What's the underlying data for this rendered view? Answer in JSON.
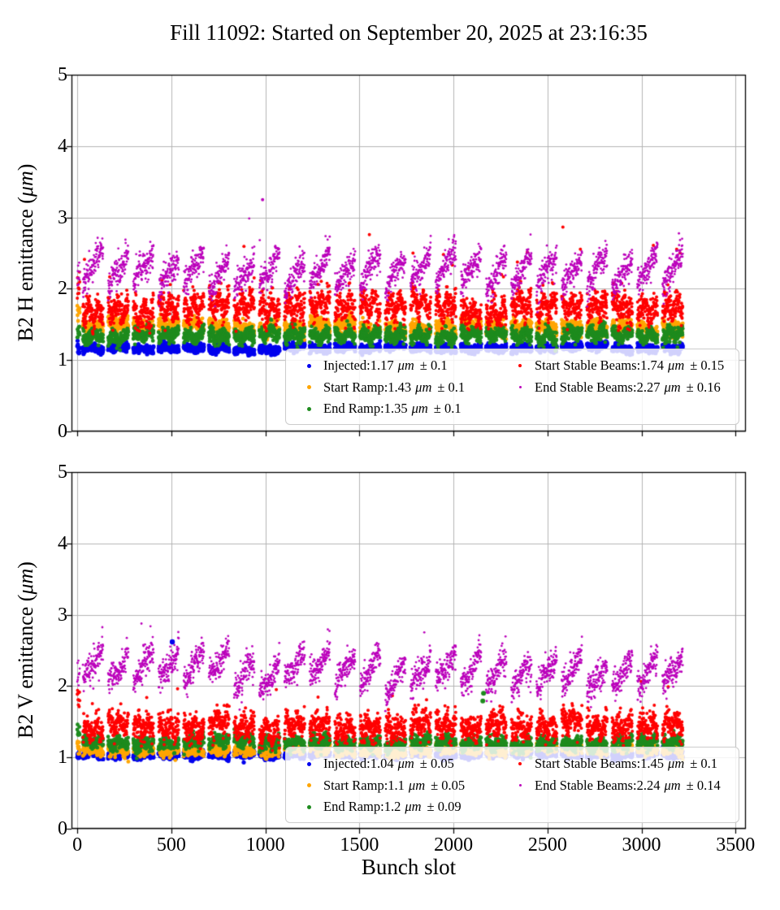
{
  "title": "Fill 11092: Started on September 20, 2025 at 23:16:35",
  "x_axis": {
    "label": "Bunch slot",
    "ticks": [
      0,
      500,
      1000,
      1500,
      2000,
      2500,
      3000,
      3500
    ],
    "ticklabels": [
      "0",
      "500",
      "1000",
      "1500",
      "2000",
      "2500",
      "3000",
      "3500"
    ]
  },
  "grid_color": "#b4b4b4",
  "chart_data": [
    {
      "type": "scatter",
      "beam": "B2 H",
      "ylabel_prefix": "B2 H emittance (",
      "ylabel_unit": "μm",
      "ylabel_suffix": ")",
      "xlabel": "Bunch slot",
      "xlim": [
        -31,
        3555
      ],
      "ylim": [
        0,
        5
      ],
      "yticks": [
        0,
        1,
        2,
        3,
        4,
        5
      ],
      "yticklabels": [
        "0",
        "1",
        "2",
        "3",
        "4",
        "5"
      ],
      "grid": true,
      "legend_position": "lower right",
      "legend_columns": 2,
      "seed": 42,
      "bunch_structure": {
        "probe_count": 10,
        "probe_span": 14,
        "train_start": 30,
        "train_count": 24,
        "train_length": 108,
        "train_gap": 26
      },
      "series": [
        {
          "name": "Injected",
          "mean": 1.17,
          "std": 0.1,
          "color": "#0000ee",
          "size": 5.2,
          "legend_prefix": "Injected:1.17",
          "legend_unit": "μm",
          "legend_suffix": "± 0.1",
          "gen": {
            "base": 1.17,
            "noise": 0.028,
            "train_jitter": 0.012,
            "slope": 0,
            "wave": 0.02,
            "wave_freq": 1,
            "probe_offset": 0.0,
            "probe_noise": 0.05,
            "outlier_rate": 0,
            "outlier_min": 0,
            "outlier_max": 0
          }
        },
        {
          "name": "Start Ramp",
          "mean": 1.43,
          "std": 0.1,
          "color": "#ffa500",
          "size": 4.8,
          "legend_prefix": "Start Ramp:1.43",
          "legend_unit": "μm",
          "legend_suffix": "± 0.1",
          "gen": {
            "base": 1.47,
            "noise": 0.05,
            "train_jitter": 0.025,
            "slope": -0.05,
            "wave": 0.03,
            "wave_freq": 1,
            "probe_offset": 0.22,
            "probe_noise": 0.06,
            "outlier_rate": 0,
            "outlier_min": 0,
            "outlier_max": 0
          }
        },
        {
          "name": "End Ramp",
          "mean": 1.35,
          "std": 0.1,
          "color": "#1e8b1e",
          "size": 4.8,
          "legend_prefix": "End Ramp:1.35",
          "legend_unit": "μm",
          "legend_suffix": "± 0.1",
          "gen": {
            "base": 1.35,
            "noise": 0.05,
            "train_jitter": 0.02,
            "slope": 0.03,
            "wave": 0.05,
            "wave_freq": 1.5,
            "probe_offset": 0.05,
            "probe_noise": 0.06,
            "outlier_rate": 0,
            "outlier_min": 0,
            "outlier_max": 0
          }
        },
        {
          "name": "Start Stable Beams",
          "mean": 1.74,
          "std": 0.15,
          "color": "#ff0000",
          "size": 4.0,
          "legend_prefix": "Start Stable Beams:1.74",
          "legend_unit": "μm",
          "legend_suffix": "± 0.15",
          "gen": {
            "base": 1.72,
            "noise": 0.1,
            "train_jitter": 0.04,
            "slope": 0.02,
            "wave": 0.09,
            "wave_freq": 2,
            "probe_offset": 0.35,
            "probe_noise": 0.15,
            "outlier_rate": 0.01,
            "outlier_min": 0.35,
            "outlier_max": 0.95
          }
        },
        {
          "name": "End Stable Beams",
          "mean": 2.27,
          "std": 0.16,
          "color": "#bb00bb",
          "size": 2.8,
          "legend_prefix": "End Stable Beams:2.27",
          "legend_unit": "μm",
          "legend_suffix": "± 0.16",
          "gen": {
            "base": 2.26,
            "noise": 0.1,
            "train_jitter": 0.06,
            "slope": 0.46,
            "wave": 0.04,
            "wave_freq": 1,
            "probe_offset": -0.08,
            "probe_noise": 0.12,
            "outlier_rate": 0.002,
            "outlier_min": 0.3,
            "outlier_max": 0.6
          }
        }
      ],
      "extra_points": [
        {
          "series": 4,
          "x": 985,
          "y": 3.25
        }
      ]
    },
    {
      "type": "scatter",
      "beam": "B2 V",
      "ylabel_prefix": "B2 V emittance (",
      "ylabel_unit": "μm",
      "ylabel_suffix": ")",
      "xlabel": "Bunch slot",
      "xlim": [
        -31,
        3555
      ],
      "ylim": [
        0,
        5
      ],
      "yticks": [
        0,
        1,
        2,
        3,
        4,
        5
      ],
      "yticklabels": [
        "0",
        "1",
        "2",
        "3",
        "4",
        "5"
      ],
      "grid": true,
      "legend_position": "lower right",
      "legend_columns": 2,
      "seed": 1337,
      "bunch_structure": {
        "probe_count": 10,
        "probe_span": 14,
        "train_start": 30,
        "train_count": 24,
        "train_length": 108,
        "train_gap": 26
      },
      "series": [
        {
          "name": "Injected",
          "mean": 1.04,
          "std": 0.05,
          "color": "#0000ee",
          "size": 5.2,
          "legend_prefix": "Injected:1.04",
          "legend_unit": "μm",
          "legend_suffix": "± 0.05",
          "gen": {
            "base": 1.04,
            "noise": 0.025,
            "train_jitter": 0.01,
            "slope": 0,
            "wave": 0.015,
            "wave_freq": 1,
            "probe_offset": 0.0,
            "probe_noise": 0.04,
            "outlier_rate": 0,
            "outlier_min": 0,
            "outlier_max": 0
          }
        },
        {
          "name": "Start Ramp",
          "mean": 1.1,
          "std": 0.05,
          "color": "#ffa500",
          "size": 4.8,
          "legend_prefix": "Start Ramp:1.1",
          "legend_unit": "μm",
          "legend_suffix": "± 0.05",
          "gen": {
            "base": 1.11,
            "noise": 0.04,
            "train_jitter": 0.02,
            "slope": -0.02,
            "wave": 0.02,
            "wave_freq": 1,
            "probe_offset": 0.05,
            "probe_noise": 0.05,
            "outlier_rate": 0,
            "outlier_min": 0,
            "outlier_max": 0
          }
        },
        {
          "name": "End Ramp",
          "mean": 1.2,
          "std": 0.09,
          "color": "#1e8b1e",
          "size": 4.8,
          "legend_prefix": "End Ramp:1.2",
          "legend_unit": "μm",
          "legend_suffix": "± 0.09",
          "gen": {
            "base": 1.21,
            "noise": 0.045,
            "train_jitter": 0.02,
            "slope": 0.03,
            "wave": 0.04,
            "wave_freq": 1.5,
            "probe_offset": 0.14,
            "probe_noise": 0.05,
            "outlier_rate": 0,
            "outlier_min": 0,
            "outlier_max": 0
          }
        },
        {
          "name": "Start Stable Beams",
          "mean": 1.45,
          "std": 0.1,
          "color": "#ff0000",
          "size": 4.0,
          "legend_prefix": "Start Stable Beams:1.45",
          "legend_unit": "μm",
          "legend_suffix": "± 0.1",
          "gen": {
            "base": 1.44,
            "noise": 0.09,
            "train_jitter": 0.03,
            "slope": 0.02,
            "wave": 0.07,
            "wave_freq": 2,
            "probe_offset": 0.38,
            "probe_noise": 0.12,
            "outlier_rate": 0.004,
            "outlier_min": 0.3,
            "outlier_max": 0.55
          }
        },
        {
          "name": "End Stable Beams",
          "mean": 2.24,
          "std": 0.14,
          "color": "#bb00bb",
          "size": 2.8,
          "legend_prefix": "End Stable Beams:2.24",
          "legend_unit": "μm",
          "legend_suffix": "± 0.14",
          "gen": {
            "base": 2.22,
            "noise": 0.1,
            "train_jitter": 0.06,
            "slope": 0.42,
            "wave": 0.04,
            "wave_freq": 1,
            "probe_offset": -0.05,
            "probe_noise": 0.1,
            "outlier_rate": 0.001,
            "outlier_min": 0.25,
            "outlier_max": 0.45
          }
        }
      ],
      "extra_points": [
        {
          "series": 0,
          "x": 505,
          "y": 2.62
        },
        {
          "series": 2,
          "x": 2160,
          "y": 1.9
        },
        {
          "series": 2,
          "x": 2156,
          "y": 1.79
        }
      ]
    }
  ]
}
